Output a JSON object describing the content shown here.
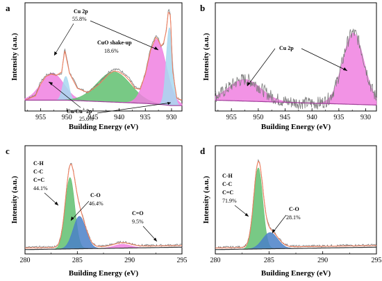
{
  "chart_data": [
    {
      "panel": "a",
      "type": "line",
      "xlabel": "Building Energy (eV)",
      "ylabel": "Intensity (a.u.)",
      "xlim": [
        958,
        928
      ],
      "xticks": [
        955,
        950,
        945,
        940,
        935,
        930
      ],
      "reversed_x": true,
      "ylim": [
        0,
        1
      ],
      "series": [
        {
          "role": "raw",
          "color": "#7a7a7a",
          "x": [
            958,
            956,
            955,
            954,
            953,
            952,
            951,
            950.4,
            949.5,
            948,
            946,
            944,
            942,
            941,
            940,
            939,
            938,
            937,
            936,
            935,
            934,
            933,
            932.6,
            932,
            931.5,
            931,
            930.6,
            930.2,
            929.8,
            929,
            928
          ],
          "y": [
            0.1,
            0.15,
            0.27,
            0.33,
            0.35,
            0.33,
            0.35,
            0.58,
            0.36,
            0.22,
            0.17,
            0.25,
            0.36,
            0.39,
            0.38,
            0.35,
            0.3,
            0.22,
            0.2,
            0.35,
            0.58,
            0.7,
            0.68,
            0.6,
            0.62,
            0.75,
            0.94,
            0.9,
            0.4,
            0.12,
            0.1
          ]
        },
        {
          "role": "envelope",
          "color": "#f08060",
          "x": [
            958,
            956,
            955,
            954,
            953,
            952,
            951,
            950.4,
            949.5,
            948,
            946,
            944,
            942,
            941,
            940,
            939,
            938,
            937,
            936,
            935,
            934,
            933,
            932.6,
            932,
            931.5,
            931,
            930.6,
            930.2,
            929.8,
            929,
            928
          ],
          "y": [
            0.1,
            0.14,
            0.25,
            0.32,
            0.34,
            0.33,
            0.36,
            0.56,
            0.35,
            0.21,
            0.17,
            0.24,
            0.34,
            0.37,
            0.36,
            0.33,
            0.28,
            0.21,
            0.2,
            0.34,
            0.56,
            0.68,
            0.66,
            0.6,
            0.63,
            0.74,
            0.92,
            0.88,
            0.38,
            0.12,
            0.1
          ]
        },
        {
          "role": "background",
          "color": "#a0409a",
          "x": [
            958,
            950,
            945,
            940,
            935,
            932,
            930,
            928
          ],
          "y": [
            0.1,
            0.1,
            0.09,
            0.08,
            0.07,
            0.06,
            0.05,
            0.05
          ]
        }
      ],
      "components": [
        {
          "name": "Cu 2p (2p1/2)",
          "fill": "#f080e0",
          "center": 952.8,
          "height": 0.25,
          "width": 2.2
        },
        {
          "name": "Cu/Cu+ 2p (2p1/2)",
          "fill": "#a8d8f0",
          "center": 950.2,
          "height": 0.22,
          "width": 0.6
        },
        {
          "name": "CuO shake-up",
          "fill": "#60c070",
          "center": 941.0,
          "height": 0.28,
          "width": 3.2
        },
        {
          "name": "Cu 2p (2p3/2)",
          "fill": "#f080e0",
          "center": 932.8,
          "height": 0.6,
          "width": 1.8
        },
        {
          "name": "Cu/Cu+ 2p (2p3/2)",
          "fill": "#a8d8f0",
          "center": 930.4,
          "height": 0.72,
          "width": 0.6
        }
      ],
      "annotations": [
        {
          "lines": [
            "Cu 2p",
            "55.8%"
          ]
        },
        {
          "lines": [
            "CuO shake-up",
            "18.6%"
          ]
        },
        {
          "lines": [
            "Cu/Cu",
            "+",
            "2p",
            "25.6%"
          ]
        }
      ]
    },
    {
      "panel": "b",
      "type": "line",
      "xlabel": "Building Energy (eV)",
      "ylabel": "Intensity (a.u.)",
      "xlim": [
        958,
        928
      ],
      "xticks": [
        955,
        950,
        945,
        940,
        935,
        930
      ],
      "reversed_x": true,
      "ylim": [
        0,
        1
      ],
      "series": [
        {
          "role": "raw_noisy",
          "color": "#7a7a7a"
        },
        {
          "role": "background",
          "color": "#a0409a"
        }
      ],
      "components": [
        {
          "name": "Cu 2p (2p1/2)",
          "fill": "#f080e0",
          "center": 952.5,
          "height": 0.2,
          "width": 3.0
        },
        {
          "name": "Cu 2p (2p3/2)",
          "fill": "#f080e0",
          "center": 932.3,
          "height": 0.66,
          "width": 2.0
        }
      ],
      "annotations": [
        {
          "lines": [
            "Cu 2p"
          ]
        }
      ]
    },
    {
      "panel": "c",
      "type": "line",
      "xlabel": "Building Energy (eV)",
      "ylabel": "Intensity (a.u.)",
      "xlim": [
        280,
        295
      ],
      "xticks": [
        280,
        285,
        290,
        295
      ],
      "reversed_x": false,
      "ylim": [
        0,
        1
      ],
      "series": [
        {
          "role": "raw",
          "color": "#7a7a7a"
        },
        {
          "role": "envelope",
          "color": "#f08060"
        },
        {
          "role": "background",
          "color": "#333333"
        }
      ],
      "components": [
        {
          "name": "C-H/C-C/C=C",
          "fill": "#60c070",
          "center": 284.3,
          "height": 0.66,
          "width": 0.45
        },
        {
          "name": "C-O",
          "fill": "#4a80c8",
          "center": 285.2,
          "height": 0.3,
          "width": 0.6
        },
        {
          "name": "C=O",
          "fill": "#f080e0",
          "center": 289.3,
          "height": 0.035,
          "width": 0.8
        }
      ],
      "annotations": [
        {
          "lines": [
            "C-H",
            "C-C",
            "C=C",
            "44.1%"
          ]
        },
        {
          "lines": [
            "C-O",
            "46.4%"
          ]
        },
        {
          "lines": [
            "C=O",
            "9.5%"
          ]
        }
      ]
    },
    {
      "panel": "d",
      "type": "line",
      "xlabel": "Building Energy (eV)",
      "ylabel": "Intensity (a.u.)",
      "xlim": [
        280,
        295
      ],
      "xticks": [
        280,
        285,
        290,
        295
      ],
      "reversed_x": false,
      "ylim": [
        0,
        1
      ],
      "series": [
        {
          "role": "raw",
          "color": "#7a7a7a"
        },
        {
          "role": "envelope",
          "color": "#f08060"
        },
        {
          "role": "background",
          "color": "#333333"
        }
      ],
      "components": [
        {
          "name": "C-H/C-C/C=C",
          "fill": "#60c070",
          "center": 284.0,
          "height": 0.75,
          "width": 0.42
        },
        {
          "name": "C-O",
          "fill": "#4a80c8",
          "center": 285.1,
          "height": 0.15,
          "width": 0.7
        }
      ],
      "annotations": [
        {
          "lines": [
            "C-H",
            "C-C",
            "C=C",
            "71.9%"
          ]
        },
        {
          "lines": [
            "C-O",
            "28.1%"
          ]
        }
      ]
    }
  ],
  "labels": {
    "panel_a": "a",
    "panel_b": "b",
    "panel_c": "c",
    "panel_d": "d"
  }
}
